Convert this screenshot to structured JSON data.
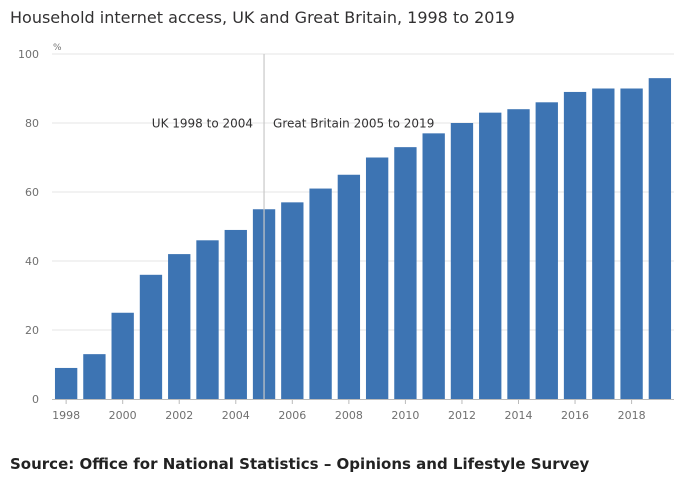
{
  "title": "Household internet access, UK and Great Britain, 1998 to 2019",
  "source": "Source: Office for National Statistics – Opinions and Lifestyle Survey",
  "colors": {
    "bar": "#3d74b3",
    "grid": "#e6e6e6",
    "divider": "#c8c8c8",
    "axis": "#bbbbbb"
  },
  "chart_data": {
    "type": "bar",
    "title": "Household internet access, UK and Great Britain, 1998 to 2019",
    "unit": "%",
    "categories": [
      "1998",
      "1999",
      "2000",
      "2001",
      "2002",
      "2003",
      "2004",
      "2005",
      "2006",
      "2007",
      "2008",
      "2009",
      "2010",
      "2011",
      "2012",
      "2013",
      "2014",
      "2015",
      "2016",
      "2017",
      "2018",
      "2019"
    ],
    "values": [
      9,
      13,
      25,
      36,
      42,
      46,
      49,
      55,
      57,
      61,
      65,
      70,
      73,
      77,
      80,
      83,
      84,
      86,
      89,
      90,
      90,
      93
    ],
    "ylim": [
      0,
      100
    ],
    "yticks": [
      0,
      20,
      40,
      60,
      80,
      100
    ],
    "xtick_labels": [
      "1998",
      "2000",
      "2002",
      "2004",
      "2006",
      "2008",
      "2010",
      "2012",
      "2014",
      "2016",
      "2018"
    ],
    "grid": true,
    "divider_year": "2005",
    "annotations": [
      "UK 1998 to 2004",
      "Great Britain 2005 to 2019"
    ]
  }
}
